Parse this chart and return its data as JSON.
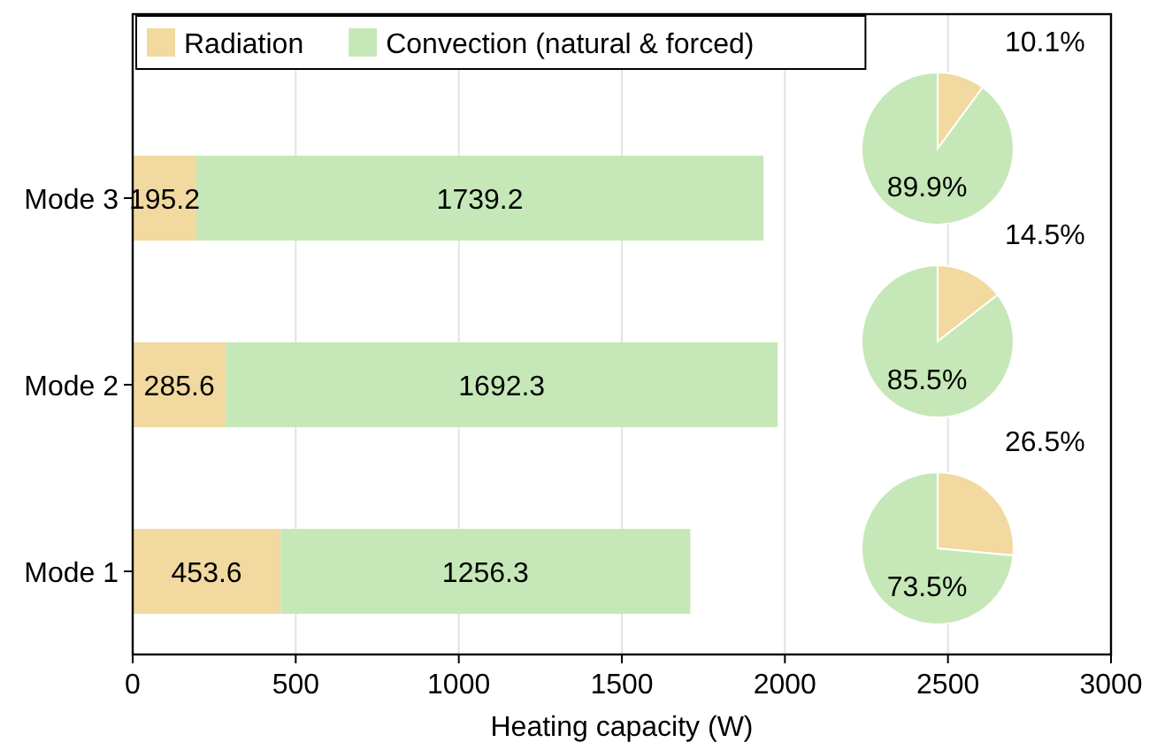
{
  "chart_data": [
    {
      "type": "bar",
      "orientation": "horizontal",
      "stacked": true,
      "xlabel": "Heating capacity (W)",
      "categories": [
        "Mode 3",
        "Mode 2",
        "Mode 1"
      ],
      "series": [
        {
          "name": "Radiation",
          "color": "#f1d9a0",
          "values": [
            195.2,
            285.6,
            453.6
          ]
        },
        {
          "name": "Convection (natural & forced)",
          "color": "#c6e8b8",
          "values": [
            1739.2,
            1692.3,
            1256.3
          ]
        }
      ],
      "xlim": [
        0,
        3000
      ],
      "xticks": [
        0,
        500,
        1000,
        1500,
        2000,
        2500,
        3000
      ],
      "grid": "x",
      "legend": "top left",
      "data_labels": true
    },
    {
      "type": "pie",
      "categories": [
        null,
        null
      ],
      "values": [
        10.1,
        89.9
      ],
      "colors": [
        "#f1d9a0",
        "#c6e8b8"
      ],
      "value_labels": [
        "10.1%",
        "89.9%"
      ]
    },
    {
      "type": "pie",
      "categories": [
        null,
        null
      ],
      "values": [
        14.5,
        85.5
      ],
      "colors": [
        "#f1d9a0",
        "#c6e8b8"
      ],
      "value_labels": [
        "14.5%",
        "85.5%"
      ]
    },
    {
      "type": "pie",
      "categories": [
        null,
        null
      ],
      "values": [
        26.5,
        73.5
      ],
      "colors": [
        "#f1d9a0",
        "#c6e8b8"
      ],
      "value_labels": [
        "26.5%",
        "73.5%"
      ]
    }
  ]
}
